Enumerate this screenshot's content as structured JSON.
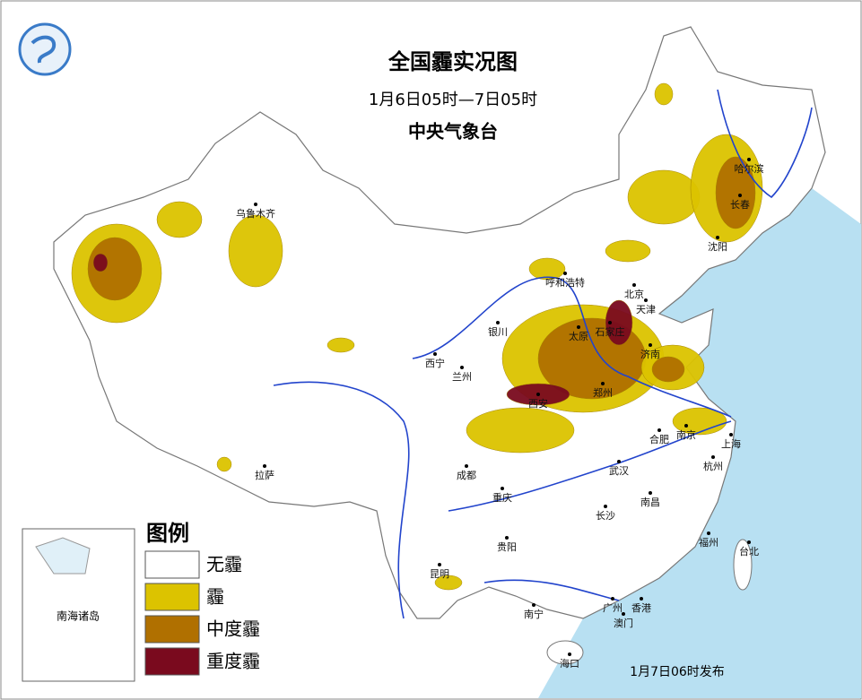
{
  "header": {
    "title": "全国霾实况图",
    "subtitle": "1月6日05时—7日05时",
    "issuer": "中央气象台"
  },
  "legend": {
    "title": "图例",
    "items": [
      {
        "label": "无霾",
        "color": "#ffffff"
      },
      {
        "label": "霾",
        "color": "#dcc300"
      },
      {
        "label": "中度霾",
        "color": "#b07000"
      },
      {
        "label": "重度霾",
        "color": "#7a0a1e"
      }
    ]
  },
  "cities": [
    "乌鲁木齐",
    "呼和浩特",
    "北京",
    "天津",
    "石家庄",
    "太原",
    "银川",
    "西宁",
    "兰州",
    "济南",
    "郑州",
    "西安",
    "合肥",
    "南京",
    "上海",
    "杭州",
    "武汉",
    "成都",
    "重庆",
    "拉萨",
    "南昌",
    "长沙",
    "福州",
    "台北",
    "贵阳",
    "昆明",
    "南宁",
    "广州",
    "香港",
    "澳门",
    "海口",
    "沈阳",
    "长春",
    "哈尔滨"
  ],
  "inset": {
    "label": "南海诸岛"
  },
  "footer": "1月7日06时发布"
}
